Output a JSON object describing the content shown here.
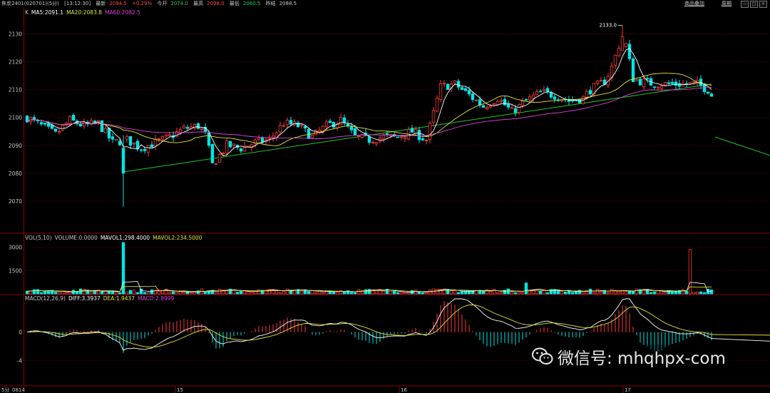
{
  "header": {
    "title": "焦炭2401(020701)(5分)",
    "time": "[13:12:30]",
    "last_label": "最新",
    "last_value": "2094.5",
    "change": "+0.29%",
    "open_label": "今开",
    "open_value": "2074.0",
    "high_label": "最高",
    "high_value": "2098.0",
    "low_label": "最低",
    "low_value": "2060.5",
    "prev_label": "昨结",
    "prev_value": "2088.5",
    "overlay_link": "商品叠加",
    "period_link": "周期"
  },
  "legends": {
    "price": [
      {
        "text": "K",
        "color": "#c8c8c8"
      },
      {
        "text": "MA5:2091.1",
        "color": "#ffffff"
      },
      {
        "text": "MA20:2083.8",
        "color": "#e5e534"
      },
      {
        "text": "MA60:2082.5",
        "color": "#e040e0"
      }
    ],
    "volume": [
      {
        "text": "VOL(5,10)",
        "color": "#c8c8c8"
      },
      {
        "text": "VOLUME:0.0000",
        "color": "#c8c8c8"
      },
      {
        "text": "MAVOL1:298.4000",
        "color": "#ffffff"
      },
      {
        "text": "MAVOL2:234.5000",
        "color": "#e5e534"
      }
    ],
    "macd": [
      {
        "text": "MACD(12,26,9)",
        "color": "#c8c8c8"
      },
      {
        "text": "DIFF:3.3937",
        "color": "#ffffff"
      },
      {
        "text": "DEA:1.9437",
        "color": "#e5e534"
      },
      {
        "text": "MACD:2.8999",
        "color": "#e040e0"
      }
    ]
  },
  "annotations": {
    "high_mark": "2133.0",
    "low_mark": "2061.0"
  },
  "x_labels": [
    "5分",
    "0814",
    "15",
    "16",
    "17"
  ],
  "watermark": {
    "text": "微信号: mhqhpx-com",
    "icon": "wechat-icon"
  },
  "colors": {
    "up": "#ff3b3b",
    "down": "#00e6e6",
    "ma5": "#ffffff",
    "ma20": "#e5e534",
    "ma60": "#e040e0",
    "trendline": "#1ec81e",
    "grid": "#5a0000"
  },
  "chart_data": [
    {
      "type": "candlestick",
      "name": "price",
      "y_ticks": [
        2070,
        2080,
        2090,
        2100,
        2110,
        2120,
        2130
      ],
      "ylim": [
        2059,
        2136
      ],
      "bars": 193,
      "anchors": [
        [
          0,
          2100
        ],
        [
          4,
          2097
        ],
        [
          8,
          2094
        ],
        [
          12,
          2099
        ],
        [
          16,
          2097
        ],
        [
          20,
          2098
        ],
        [
          24,
          2091
        ],
        [
          28,
          2092
        ],
        [
          32,
          2089
        ],
        [
          36,
          2091
        ],
        [
          40,
          2093
        ],
        [
          44,
          2096
        ],
        [
          48,
          2097
        ],
        [
          50,
          2094
        ],
        [
          52,
          2083
        ],
        [
          56,
          2090
        ],
        [
          60,
          2089
        ],
        [
          64,
          2091
        ],
        [
          68,
          2092
        ],
        [
          72,
          2098
        ],
        [
          76,
          2097
        ],
        [
          80,
          2093
        ],
        [
          84,
          2097
        ],
        [
          88,
          2099
        ],
        [
          92,
          2093
        ],
        [
          96,
          2092
        ],
        [
          100,
          2093
        ],
        [
          104,
          2093
        ],
        [
          108,
          2095
        ],
        [
          112,
          2092
        ],
        [
          116,
          2111
        ],
        [
          120,
          2112
        ],
        [
          124,
          2108
        ],
        [
          128,
          2104
        ],
        [
          132,
          2107
        ],
        [
          136,
          2102
        ],
        [
          140,
          2106
        ],
        [
          144,
          2109
        ],
        [
          148,
          2108
        ],
        [
          152,
          2106
        ],
        [
          156,
          2107
        ],
        [
          158,
          2110
        ],
        [
          162,
          2113
        ],
        [
          164,
          2118
        ],
        [
          166,
          2126
        ],
        [
          168,
          2126
        ],
        [
          170,
          2114
        ],
        [
          172,
          2113
        ],
        [
          176,
          2112
        ],
        [
          180,
          2112
        ],
        [
          184,
          2112
        ],
        [
          188,
          2112
        ],
        [
          191,
          2110
        ],
        [
          196,
          2100
        ],
        [
          200,
          2085
        ],
        [
          204,
          2087
        ],
        [
          208,
          2085
        ],
        [
          212,
          2086
        ],
        [
          216,
          2089
        ],
        [
          220,
          2082
        ],
        [
          222,
          2073
        ],
        [
          224,
          2070
        ],
        [
          228,
          2073
        ],
        [
          232,
          2072
        ],
        [
          236,
          2074
        ],
        [
          240,
          2077
        ],
        [
          244,
          2078
        ],
        [
          248,
          2080
        ],
        [
          252,
          2083
        ],
        [
          256,
          2084
        ],
        [
          260,
          2082
        ],
        [
          264,
          2080
        ],
        [
          268,
          2078
        ],
        [
          272,
          2080
        ],
        [
          276,
          2082
        ],
        [
          280,
          2083
        ],
        [
          284,
          2081
        ],
        [
          288,
          2080
        ],
        [
          292,
          2082
        ],
        [
          296,
          2081
        ],
        [
          300,
          2079
        ],
        [
          304,
          2090
        ],
        [
          308,
          2092
        ],
        [
          312,
          2093
        ],
        [
          314,
          2095
        ],
        [
          318,
          2088
        ],
        [
          320,
          2083
        ],
        [
          324,
          2084
        ],
        [
          328,
          2086
        ],
        [
          332,
          2083
        ],
        [
          336,
          2080
        ],
        [
          340,
          2077
        ],
        [
          344,
          2072
        ],
        [
          346,
          2068
        ],
        [
          348,
          2066
        ],
        [
          352,
          2070
        ],
        [
          356,
          2076
        ],
        [
          360,
          2080
        ],
        [
          364,
          2084
        ],
        [
          368,
          2087
        ],
        [
          372,
          2083
        ],
        [
          376,
          2082
        ],
        [
          380,
          2081
        ],
        [
          384,
          2084
        ],
        [
          388,
          2094
        ]
      ],
      "trendlines": [
        {
          "from": [
            27,
            2080.5
          ],
          "to": [
            192,
            2112
          ]
        },
        {
          "from": [
            193,
            2093
          ],
          "to": [
            214,
            2084
          ]
        },
        {
          "from": [
            233,
            2065
          ],
          "to": [
            310,
            2084
          ]
        },
        {
          "from": [
            300,
            2082
          ],
          "to": [
            345,
            2092
          ]
        }
      ],
      "high_point": {
        "bar": 167,
        "value": 2133.0
      },
      "low_point": {
        "bar": 348,
        "value": 2061.0
      }
    },
    {
      "type": "bar",
      "name": "volume",
      "y_ticks": [
        1500,
        3000
      ],
      "ylim": [
        0,
        3300
      ],
      "spikes": [
        {
          "bar": 27,
          "value": 3300
        },
        {
          "bar": 186,
          "value": 2850
        },
        {
          "bar": 210,
          "value": 1250
        },
        {
          "bar": 232,
          "value": 1050
        },
        {
          "bar": 253,
          "value": 850
        },
        {
          "bar": 310,
          "value": 1200
        },
        {
          "bar": 308,
          "value": 750
        },
        {
          "bar": 345,
          "value": 1100
        },
        {
          "bar": 352,
          "value": 900
        },
        {
          "bar": 140,
          "value": 700
        },
        {
          "bar": 196,
          "value": 700
        },
        {
          "bar": 380,
          "value": 450
        }
      ],
      "base_volume": 180
    },
    {
      "type": "bar",
      "name": "macd",
      "y_ticks": [
        0,
        -4
      ],
      "ylim": [
        -7.5,
        4.8
      ],
      "series": [
        "DIFF",
        "DEA",
        "MACD"
      ]
    }
  ]
}
